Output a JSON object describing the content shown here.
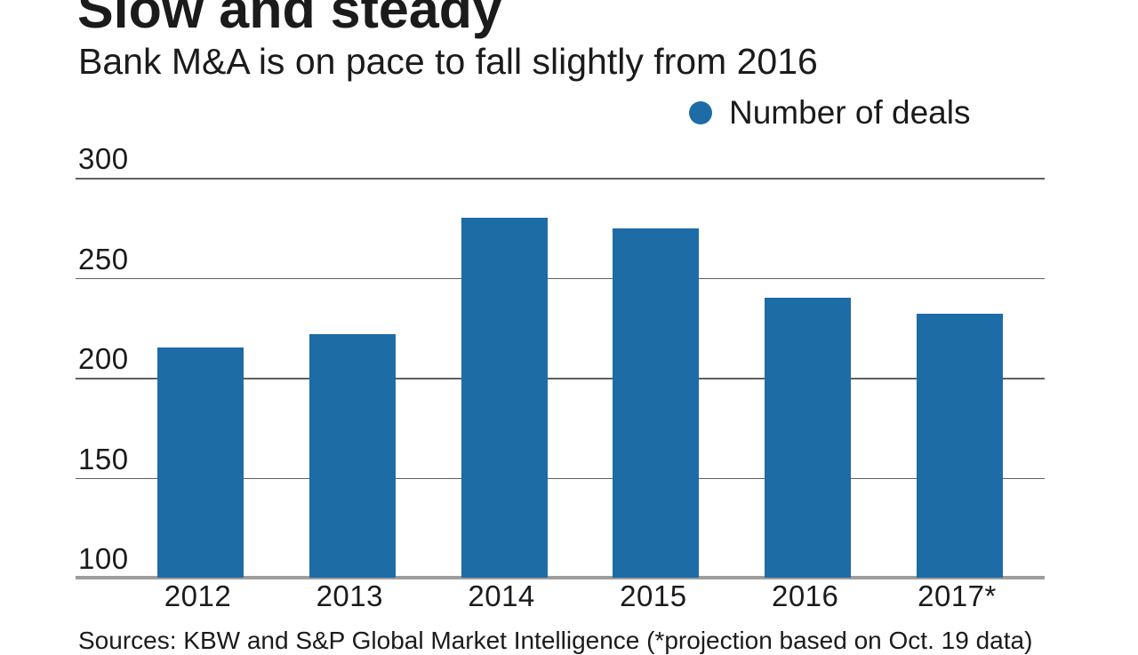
{
  "title": "Slow and steady",
  "subtitle": "Bank M&A is on pace to fall slightly from 2016",
  "legend": {
    "label": "Number of deals"
  },
  "source_note": "Sources: KBW and S&P Global Market Intelligence (*projection based on Oct. 19 data)",
  "colors": {
    "bar": "#1e6ca6",
    "gridline": "#5f5f5f",
    "axis_line": "#9d9d9d",
    "text": "#1b1b1b"
  },
  "chart_data": {
    "type": "bar",
    "title": "Slow and steady",
    "subtitle": "Bank M&A is on pace to fall slightly from 2016",
    "categories": [
      "2012",
      "2013",
      "2014",
      "2015",
      "2016",
      "2017*"
    ],
    "series": [
      {
        "name": "Number of deals",
        "values": [
          215,
          222,
          280,
          275,
          240,
          232
        ]
      }
    ],
    "ylabel": "",
    "xlabel": "",
    "yticks": [
      100,
      150,
      200,
      250,
      300
    ],
    "ylim": [
      100,
      300
    ],
    "grid": true,
    "legend_position": "top-right"
  }
}
